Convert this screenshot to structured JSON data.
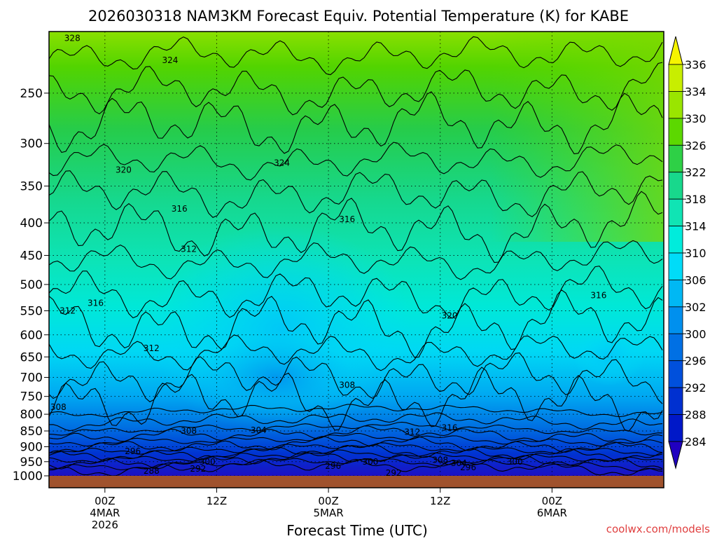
{
  "chart_data": {
    "type": "heatmap",
    "title": "2026030318 NAM3KM Forecast Equiv. Potential Temperature (K) for KABE",
    "xlabel": "Forecast Time (UTC)",
    "ylabel": "",
    "y_scale": "pressure (log)",
    "ylim": [
      1000,
      200
    ],
    "xlim_hours": [
      -6,
      60
    ],
    "x_ticks": [
      {
        "hour": 0,
        "label": "00Z",
        "label2": "4MAR",
        "label3": "2026"
      },
      {
        "hour": 12,
        "label": "12Z",
        "label2": "",
        "label3": ""
      },
      {
        "hour": 24,
        "label": "00Z",
        "label2": "5MAR",
        "label3": ""
      },
      {
        "hour": 36,
        "label": "12Z",
        "label2": "",
        "label3": ""
      },
      {
        "hour": 48,
        "label": "00Z",
        "label2": "6MAR",
        "label3": ""
      }
    ],
    "y_ticks": [
      250,
      300,
      350,
      400,
      450,
      500,
      550,
      600,
      650,
      700,
      750,
      800,
      850,
      900,
      950,
      1000
    ],
    "grid": true,
    "colorbar": {
      "labels": [
        336,
        334,
        330,
        326,
        322,
        318,
        314,
        310,
        306,
        302,
        300,
        296,
        292,
        288,
        284
      ],
      "colors": [
        "#f6f400",
        "#c8ee00",
        "#9ae500",
        "#5cd800",
        "#2ed046",
        "#18d88c",
        "#10e4b4",
        "#00ecdc",
        "#00dcf8",
        "#00b8f4",
        "#0090ee",
        "#0070e4",
        "#0050dc",
        "#0030d0",
        "#0018c8",
        "#2000c0"
      ]
    },
    "contour_labels": [
      {
        "text": "328",
        "hour": -3.5,
        "p": 205
      },
      {
        "text": "324",
        "hour": 7,
        "p": 222
      },
      {
        "text": "324",
        "hour": 19,
        "p": 322
      },
      {
        "text": "320",
        "hour": 2,
        "p": 330
      },
      {
        "text": "316",
        "hour": 8,
        "p": 380
      },
      {
        "text": "316",
        "hour": 26,
        "p": 395
      },
      {
        "text": "312",
        "hour": 9,
        "p": 440
      },
      {
        "text": "316",
        "hour": -1,
        "p": 535
      },
      {
        "text": "312",
        "hour": -4,
        "p": 550
      },
      {
        "text": "320",
        "hour": 37,
        "p": 560
      },
      {
        "text": "316",
        "hour": 53,
        "p": 520
      },
      {
        "text": "312",
        "hour": 5,
        "p": 630
      },
      {
        "text": "308",
        "hour": 26,
        "p": 720
      },
      {
        "text": "308",
        "hour": -5,
        "p": 780
      },
      {
        "text": "308",
        "hour": 9,
        "p": 850
      },
      {
        "text": "304",
        "hour": 16.5,
        "p": 848
      },
      {
        "text": "312",
        "hour": 33,
        "p": 853
      },
      {
        "text": "316",
        "hour": 37,
        "p": 840
      },
      {
        "text": "296",
        "hour": 3,
        "p": 915
      },
      {
        "text": "300",
        "hour": 11,
        "p": 950
      },
      {
        "text": "292",
        "hour": 10,
        "p": 975
      },
      {
        "text": "288",
        "hour": 5,
        "p": 983
      },
      {
        "text": "296",
        "hour": 24.5,
        "p": 965
      },
      {
        "text": "300",
        "hour": 28.5,
        "p": 950
      },
      {
        "text": "292",
        "hour": 31,
        "p": 990
      },
      {
        "text": "308",
        "hour": 36,
        "p": 945
      },
      {
        "text": "304",
        "hour": 38,
        "p": 955
      },
      {
        "text": "296",
        "hour": 39,
        "p": 970
      },
      {
        "text": "300",
        "hour": 44,
        "p": 950
      }
    ]
  },
  "footer": {
    "credit": "coolwx.com/models"
  }
}
